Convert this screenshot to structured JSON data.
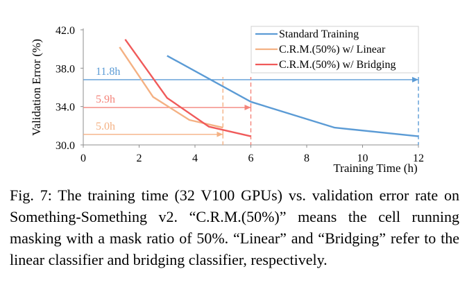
{
  "chart_data": {
    "type": "line",
    "xlabel": "Training Time (h)",
    "ylabel": "Validation Error (%)",
    "xlim": [
      0,
      12
    ],
    "ylim": [
      30,
      42
    ],
    "x_ticks": [
      "0",
      "2",
      "4",
      "6",
      "8",
      "10",
      "12"
    ],
    "y_ticks": [
      "30.0",
      "34.0",
      "38.0",
      "42.0"
    ],
    "legend_position": "top-right",
    "grid": false,
    "series": [
      {
        "name": "Standard Training",
        "color": "#5b9bd5",
        "x": [
          3,
          6,
          9,
          12
        ],
        "y": [
          39.3,
          34.5,
          31.8,
          30.9
        ]
      },
      {
        "name": "C.R.M.(50%) w/ Linear",
        "color": "#f4b183",
        "x": [
          1.3,
          2.5,
          3.8,
          5.0
        ],
        "y": [
          40.2,
          35.0,
          32.6,
          31.8
        ]
      },
      {
        "name": "C.R.M.(50%) w/ Bridging",
        "color": "#f05a5a",
        "x": [
          1.5,
          3.0,
          4.5,
          6.0
        ],
        "y": [
          41.0,
          34.9,
          31.9,
          30.9
        ]
      }
    ],
    "annotations": [
      {
        "label": "11.8h",
        "color": "#5b9bd5",
        "x": 12,
        "y": 36.8,
        "x_start": 0
      },
      {
        "label": "5.9h",
        "color": "#f4847a",
        "x": 6,
        "y": 33.9,
        "x_start": 0
      },
      {
        "label": "5.0h",
        "color": "#f4b183",
        "x": 5,
        "y": 31.1,
        "x_start": 0
      }
    ]
  },
  "caption": "Fig. 7: The training time (32 V100 GPUs) vs. validation error rate on Something-Something v2. “C.R.M.(50%)” means the cell running masking with a mask ratio of 50%. “Linear” and “Bridging” refer to the linear classifier and bridging classifier, respectively."
}
